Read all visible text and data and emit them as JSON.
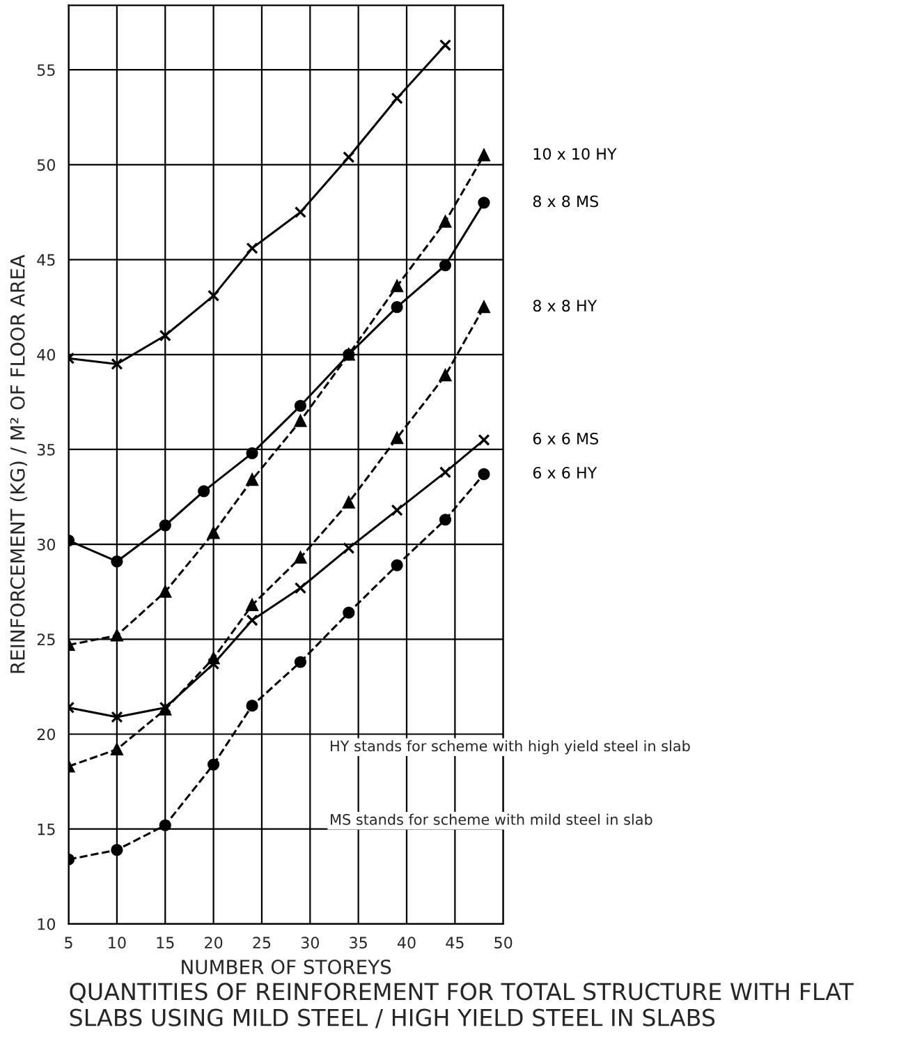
{
  "chart_data": {
    "type": "line",
    "title": "QUANTITIES OF REINFOREMENT FOR TOTAL STRUCTURE WITH FLAT SLABS USING MILD STEEL / HIGH YIELD STEEL IN SLABS",
    "xlabel": "NUMBER OF STOREYS",
    "ylabel": "REINFORCEMENT (KG) / M² OF FLOOR AREA",
    "xlim": [
      5,
      50
    ],
    "xticks": [
      5,
      10,
      15,
      20,
      25,
      30,
      35,
      40,
      45,
      50
    ],
    "ylim": [
      10,
      58.4
    ],
    "yticks": [
      10,
      15,
      20,
      25,
      30,
      35,
      40,
      45,
      50,
      55
    ],
    "grid": true,
    "legend": false,
    "annotations": [
      "HY stands for scheme with high yield steel in slab",
      "MS stands for scheme with mild steel in slab"
    ],
    "series": [
      {
        "color": "#000000",
        "marker": "cross",
        "line_style": "solid",
        "x": [
          5,
          10,
          15,
          20,
          24,
          29,
          34,
          39,
          44
        ],
        "values": [
          39.8,
          39.5,
          41.0,
          43.1,
          45.6,
          47.5,
          50.4,
          53.5,
          56.3
        ]
      },
      {
        "name": "10 x 10 HY",
        "color": "#000000",
        "marker": "triangle",
        "line_style": "dashed",
        "x": [
          5,
          10,
          15,
          20,
          24,
          29,
          34,
          39,
          44,
          48
        ],
        "values": [
          24.7,
          25.2,
          27.5,
          30.6,
          33.4,
          36.5,
          40.0,
          43.6,
          47.0,
          50.5
        ]
      },
      {
        "name": "8 x 8 MS",
        "color": "#000000",
        "marker": "circle",
        "line_style": "solid",
        "x": [
          5,
          10,
          15,
          19,
          24,
          29,
          34,
          39,
          44,
          48
        ],
        "values": [
          30.2,
          29.1,
          31.0,
          32.8,
          34.8,
          37.3,
          40.0,
          42.5,
          44.7,
          48.0
        ]
      },
      {
        "name": "8 x 8 HY",
        "color": "#000000",
        "marker": "triangle",
        "line_style": "dashed",
        "x": [
          5,
          10,
          15,
          20,
          24,
          29,
          34,
          39,
          44,
          48
        ],
        "values": [
          18.3,
          19.2,
          21.3,
          24.0,
          26.8,
          29.3,
          32.2,
          35.6,
          38.9,
          42.5
        ]
      },
      {
        "name": "6 x 6 MS",
        "color": "#000000",
        "marker": "cross",
        "line_style": "solid",
        "x": [
          5,
          10,
          15,
          20,
          24,
          29,
          34,
          39,
          44,
          48
        ],
        "values": [
          21.4,
          20.9,
          21.4,
          23.7,
          26.0,
          27.7,
          29.8,
          31.8,
          33.8,
          35.5
        ]
      },
      {
        "name": "6 x 6 HY",
        "color": "#000000",
        "marker": "circle",
        "line_style": "dashed",
        "x": [
          5,
          10,
          15,
          20,
          24,
          29,
          34,
          39,
          44,
          48
        ],
        "values": [
          13.4,
          13.9,
          15.2,
          18.4,
          21.5,
          23.8,
          26.4,
          28.9,
          31.3,
          33.7
        ]
      }
    ]
  }
}
